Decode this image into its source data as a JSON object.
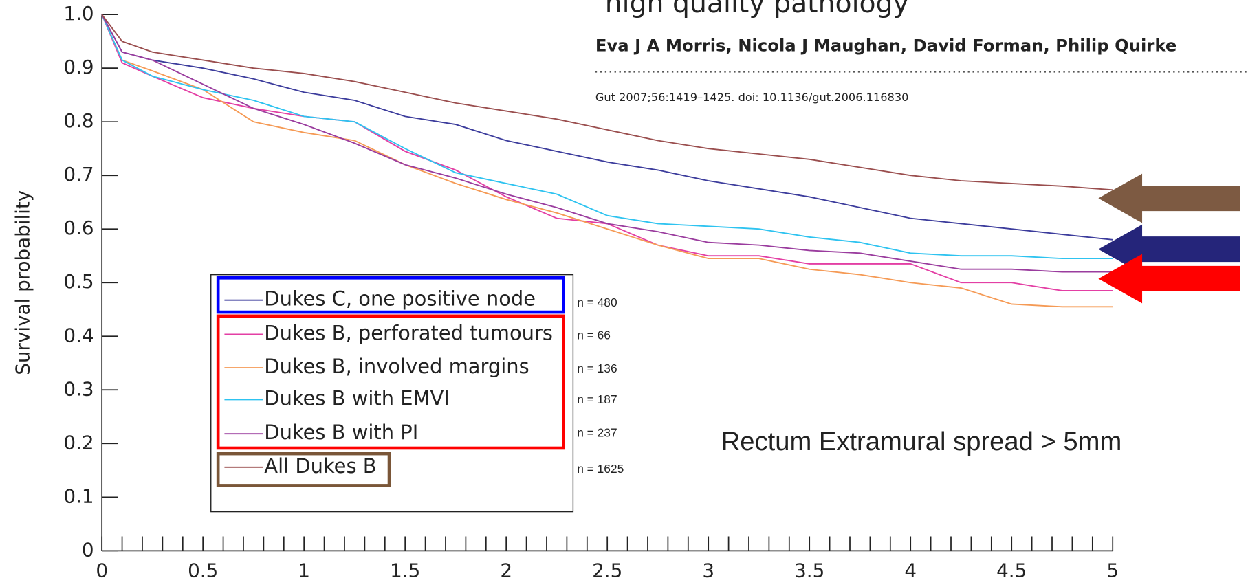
{
  "header": {
    "title": "high quality pathology",
    "authors": "Eva J A Morris, Nicola J Maughan, David Forman, Philip Quirke",
    "citation": "Gut 2007;56:1419–1425. doi: 10.1136/gut.2006.116830"
  },
  "chart_data": {
    "type": "line",
    "ylabel": "Survival probability",
    "annotation": "Rectum Extramural spread > 5mm",
    "x": [
      0,
      0.1,
      0.25,
      0.5,
      0.75,
      1,
      1.25,
      1.5,
      1.75,
      2,
      2.25,
      2.5,
      2.75,
      3,
      3.25,
      3.5,
      3.75,
      4,
      4.25,
      4.5,
      4.75,
      5
    ],
    "series": [
      {
        "name": "Dukes C, one positive node",
        "n_label": "n = 480",
        "color": "#3c3c9c",
        "values": [
          1,
          0.93,
          0.915,
          0.9,
          0.88,
          0.855,
          0.84,
          0.81,
          0.795,
          0.765,
          0.745,
          0.725,
          0.71,
          0.69,
          0.675,
          0.66,
          0.64,
          0.62,
          0.61,
          0.6,
          0.59,
          0.58
        ]
      },
      {
        "name": "Dukes B, perforated tumours",
        "n_label": "n = 66",
        "color": "#e33fa4",
        "values": [
          1,
          0.91,
          0.885,
          0.845,
          0.825,
          0.81,
          0.8,
          0.745,
          0.71,
          0.66,
          0.62,
          0.61,
          0.57,
          0.55,
          0.55,
          0.535,
          0.535,
          0.535,
          0.5,
          0.5,
          0.485,
          0.485
        ]
      },
      {
        "name": "Dukes B, involved margins",
        "n_label": "n = 136",
        "color": "#f59a55",
        "values": [
          1,
          0.915,
          0.895,
          0.86,
          0.8,
          0.78,
          0.765,
          0.72,
          0.685,
          0.655,
          0.63,
          0.6,
          0.57,
          0.545,
          0.545,
          0.525,
          0.515,
          0.5,
          0.49,
          0.46,
          0.455,
          0.455
        ]
      },
      {
        "name": "Dukes B with EMVI",
        "n_label": "n = 187",
        "color": "#2ec3f0",
        "values": [
          1,
          0.915,
          0.885,
          0.86,
          0.84,
          0.81,
          0.8,
          0.75,
          0.705,
          0.685,
          0.665,
          0.625,
          0.61,
          0.605,
          0.6,
          0.585,
          0.575,
          0.555,
          0.55,
          0.55,
          0.545,
          0.545
        ]
      },
      {
        "name": "Dukes B with PI",
        "n_label": "n = 237",
        "color": "#9a3c9e",
        "values": [
          1,
          0.93,
          0.915,
          0.87,
          0.825,
          0.795,
          0.76,
          0.72,
          0.695,
          0.665,
          0.64,
          0.61,
          0.595,
          0.575,
          0.57,
          0.56,
          0.555,
          0.54,
          0.525,
          0.525,
          0.52,
          0.52
        ]
      },
      {
        "name": "All Dukes B",
        "n_label": "n = 1625",
        "color": "#9a4e4e",
        "values": [
          1,
          0.95,
          0.93,
          0.915,
          0.9,
          0.89,
          0.875,
          0.855,
          0.835,
          0.82,
          0.805,
          0.785,
          0.765,
          0.75,
          0.74,
          0.73,
          0.715,
          0.7,
          0.69,
          0.685,
          0.68,
          0.673
        ]
      }
    ],
    "xlim": [
      0,
      5
    ],
    "ylim": [
      0,
      1
    ],
    "xticks": [
      0,
      0.5,
      1,
      1.5,
      2,
      2.5,
      3,
      3.5,
      4,
      4.5,
      5
    ],
    "xminorticks": [
      0,
      0.1,
      0.2,
      0.3,
      0.4,
      0.5,
      0.6,
      0.7,
      0.8,
      0.9,
      1,
      1.1,
      1.2,
      1.3,
      1.4,
      1.5,
      1.6,
      1.7,
      1.8,
      1.9,
      2,
      2.1,
      2.2,
      2.3,
      2.4,
      2.5,
      2.6,
      2.7,
      2.8,
      2.9,
      3,
      3.1,
      3.2,
      3.3,
      3.4,
      3.5,
      3.6,
      3.7,
      3.8,
      3.9,
      4,
      4.1,
      4.2,
      4.3,
      4.4,
      4.5,
      4.6,
      4.7,
      4.8,
      4.9,
      5
    ],
    "yticks": [
      0,
      0.1,
      0.2,
      0.3,
      0.4,
      0.5,
      0.6,
      0.7,
      0.8,
      0.9,
      {
        "value": 1,
        "label": "1.0"
      }
    ]
  }
}
